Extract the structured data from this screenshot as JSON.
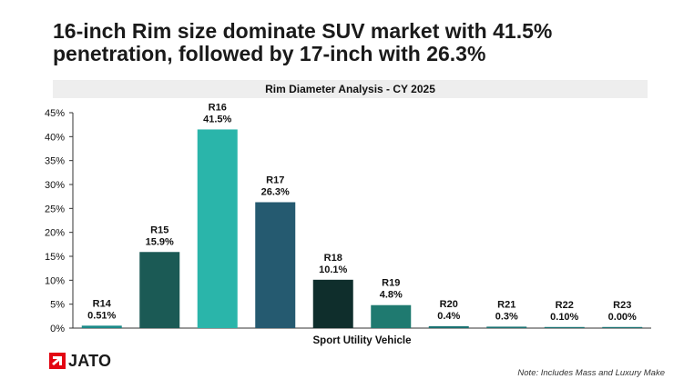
{
  "headline": {
    "line1": "16-inch Rim size dominate SUV market with 41.5%",
    "line2": "penetration, followed by 17-inch with 26.3%"
  },
  "logo": {
    "text": "JATO",
    "icon": "jato-arrow-logo-icon",
    "color": "#e30613"
  },
  "note": "Note: Includes Mass and Luxury Make",
  "chart_data": {
    "type": "bar",
    "title": "Rim Diameter Analysis - CY 2025",
    "xlabel": "Sport Utility Vehicle",
    "ylabel": "",
    "ylim": [
      0,
      45
    ],
    "yticks": [
      "0%",
      "5%",
      "10%",
      "15%",
      "20%",
      "25%",
      "30%",
      "35%",
      "40%",
      "45%"
    ],
    "grid": false,
    "categories": [
      "R14",
      "R15",
      "R16",
      "R17",
      "R18",
      "R19",
      "R20",
      "R21",
      "R22",
      "R23"
    ],
    "values": [
      0.51,
      15.9,
      41.5,
      26.3,
      10.1,
      4.8,
      0.4,
      0.3,
      0.1,
      0.0
    ],
    "value_labels": [
      "0.51%",
      "15.9%",
      "41.5%",
      "26.3%",
      "10.1%",
      "4.8%",
      "0.4%",
      "0.3%",
      "0.10%",
      "0.00%"
    ],
    "colors": [
      "#1b8a88",
      "#1b5a55",
      "#2ab5aa",
      "#255a70",
      "#0f2e2c",
      "#1f7a70",
      "#1a7272",
      "#1a7272",
      "#1a7272",
      "#1a7272"
    ]
  }
}
